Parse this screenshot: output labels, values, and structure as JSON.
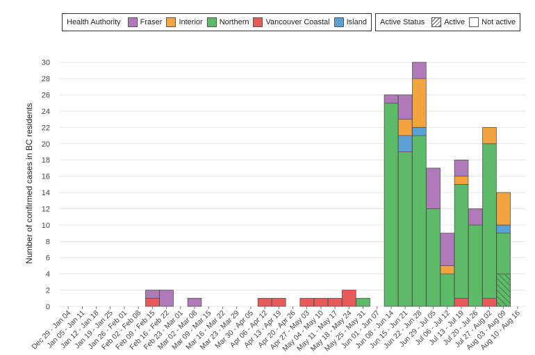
{
  "legend": {
    "title": "Health Authority",
    "items": [
      {
        "label": "Fraser",
        "color": "#B07AB8"
      },
      {
        "label": "Interior",
        "color": "#F4A43F"
      },
      {
        "label": "Northern",
        "color": "#5CBB67"
      },
      {
        "label": "Vancouver Coastal",
        "color": "#E85A5A"
      },
      {
        "label": "Island",
        "color": "#5AA2D6"
      }
    ],
    "status_title": "Active Status",
    "status_items": [
      {
        "label": "Active",
        "icon": "hatched-swatch"
      },
      {
        "label": "Not active",
        "icon": "empty-swatch"
      }
    ]
  },
  "chart_data": {
    "type": "bar",
    "stacked": true,
    "ylabel": "Number of confirmed cases in BC residents",
    "xlabel": "",
    "ylim": [
      0,
      31
    ],
    "yticks": [
      0,
      2,
      4,
      6,
      8,
      10,
      12,
      14,
      16,
      18,
      20,
      22,
      24,
      26,
      28,
      30
    ],
    "grid": "horizontal",
    "legend_position": "top",
    "categories": [
      "Dec 29 - Jan 04",
      "Jan 05 - Jan 11",
      "Jan 12 - Jan 18",
      "Jan 19 - Jan 25",
      "Jan 26 - Feb 01",
      "Feb 02 - Feb 08",
      "Feb 09 - Feb 15",
      "Feb 16 - Feb 22",
      "Feb 23 - Mar 01",
      "Mar 02 - Mar 08",
      "Mar 09 - Mar 15",
      "Mar 16 - Mar 22",
      "Mar 23 - Mar 29",
      "Mar 30 - Apr 05",
      "Apr 06 - Apr 12",
      "Apr 13 - Apr 19",
      "Apr 20 - Apr 26",
      "Apr 27 - May 03",
      "May 04 - May 10",
      "May 11 - May 17",
      "May 18 - May 24",
      "May 25 - May 31",
      "Jun 01 - Jun 07",
      "Jun 08 - Jun 14",
      "Jun 15 - Jun 21",
      "Jun 22 - Jun 28",
      "Jun 29 - Jul 05",
      "Jul 06 - Jul 12",
      "Jul 13 - Jul 19",
      "Jul 20 - Jul 26",
      "Jul 27 - Aug 02",
      "Aug 03 - Aug 09",
      "Aug 10 - Aug 16"
    ],
    "series": [
      {
        "name": "Vancouver Coastal",
        "values": [
          0,
          0,
          0,
          0,
          0,
          0,
          1,
          0,
          0,
          0,
          0,
          0,
          0,
          0,
          1,
          1,
          0,
          1,
          1,
          1,
          2,
          0,
          0,
          0,
          0,
          0,
          0,
          0,
          1,
          0,
          1,
          0,
          0
        ]
      },
      {
        "name": "Northern",
        "values": [
          0,
          0,
          0,
          0,
          0,
          0,
          0,
          0,
          0,
          0,
          0,
          0,
          0,
          0,
          0,
          0,
          0,
          0,
          0,
          0,
          0,
          1,
          0,
          25,
          19,
          21,
          12,
          4,
          14,
          10,
          19,
          9,
          0
        ]
      },
      {
        "name": "Island",
        "values": [
          0,
          0,
          0,
          0,
          0,
          0,
          0,
          0,
          0,
          0,
          0,
          0,
          0,
          0,
          0,
          0,
          0,
          0,
          0,
          0,
          0,
          0,
          0,
          0,
          2,
          1,
          0,
          0,
          0,
          0,
          0,
          1,
          0
        ]
      },
      {
        "name": "Interior",
        "values": [
          0,
          0,
          0,
          0,
          0,
          0,
          0,
          0,
          0,
          0,
          0,
          0,
          0,
          0,
          0,
          0,
          0,
          0,
          0,
          0,
          0,
          0,
          0,
          0,
          2,
          6,
          0,
          1,
          1,
          0,
          2,
          4,
          0
        ]
      },
      {
        "name": "Fraser",
        "values": [
          0,
          0,
          0,
          0,
          0,
          0,
          1,
          2,
          0,
          1,
          0,
          0,
          0,
          0,
          0,
          0,
          0,
          0,
          0,
          0,
          0,
          0,
          0,
          1,
          3,
          2,
          5,
          4,
          2,
          2,
          0,
          0,
          0
        ]
      }
    ],
    "active": [
      {
        "category": "Aug 03 - Aug 09",
        "series": "Northern",
        "value": 4
      }
    ]
  }
}
